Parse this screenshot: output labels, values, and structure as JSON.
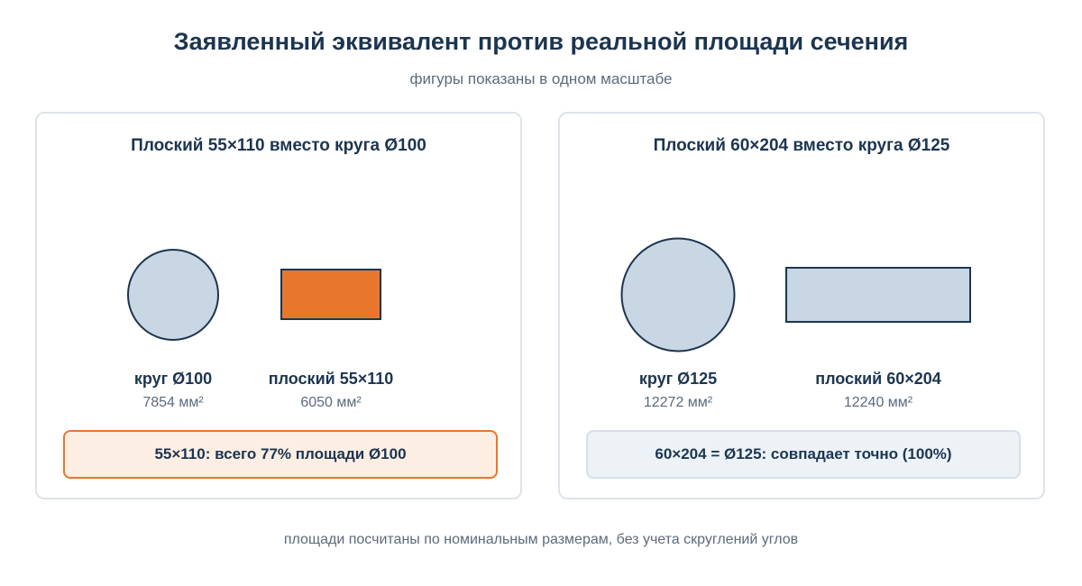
{
  "header": {
    "title": "Заявленный эквивалент против реальной площади сечения",
    "subtitle": "фигуры показаны в одном масштабе"
  },
  "colors": {
    "circle_fill": "#c9d6e3",
    "stroke": "#1c3550",
    "highlight_fill": "#e8772e",
    "ok_fill": "#c9d6e3",
    "warn_border": "#e8772e"
  },
  "comparisons": [
    {
      "title": "Плоский 55×110 вместо круга Ø100",
      "circle": {
        "label": "круг Ø100",
        "area": "7854 мм²",
        "diameter_mm": 100
      },
      "rect": {
        "label": "плоский 55×110",
        "area": "6050 мм²",
        "width_mm": 110,
        "height_mm": 55,
        "highlighted": true
      },
      "verdict": "55×110: всего 77% площади Ø100",
      "status": "warn"
    },
    {
      "title": "Плоский 60×204 вместо круга Ø125",
      "circle": {
        "label": "круг Ø125",
        "area": "12272 мм²",
        "diameter_mm": 125
      },
      "rect": {
        "label": "плоский 60×204",
        "area": "12240 мм²",
        "width_mm": 204,
        "height_mm": 60,
        "highlighted": false
      },
      "verdict": "60×204 = Ø125: совпадает точно (100%)",
      "status": "ok"
    }
  ],
  "footnote": "площади посчитаны по номинальным размерам, без учета скруглений углов"
}
